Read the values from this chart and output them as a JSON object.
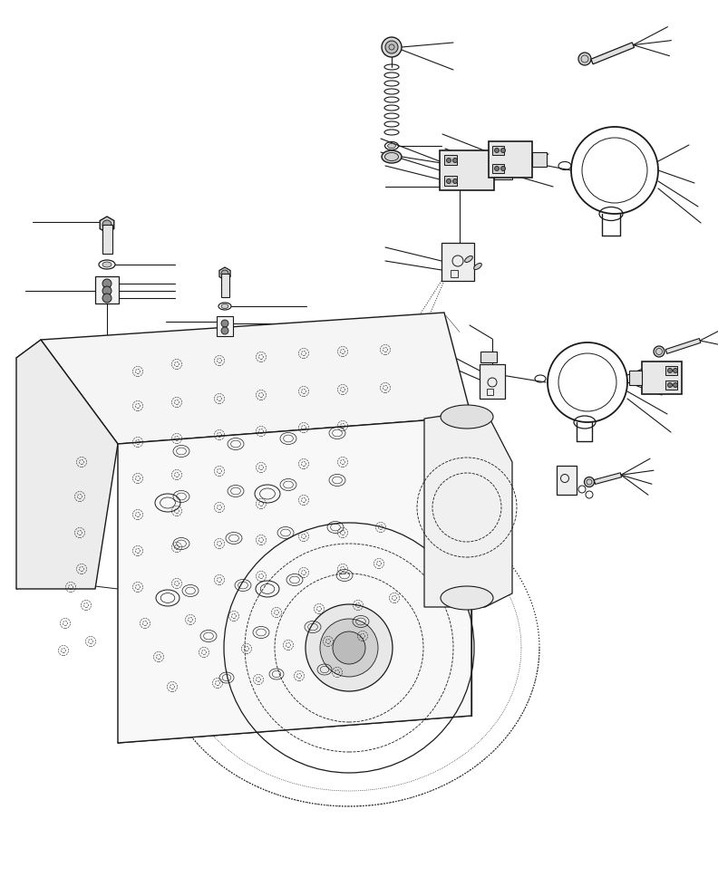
{
  "background_color": "#ffffff",
  "line_color": "#1a1a1a",
  "fig_width": 7.92,
  "fig_height": 9.68,
  "dpi": 100
}
